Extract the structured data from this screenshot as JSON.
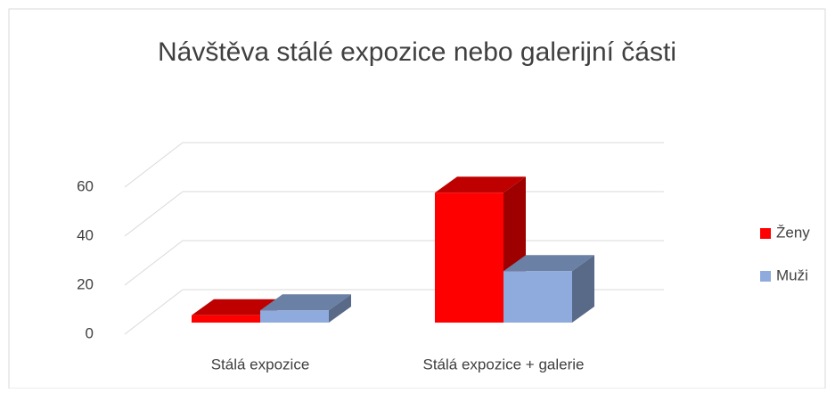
{
  "chart_data": {
    "type": "bar3d",
    "title": "Návštěva stálé expozice nebo galerijní části",
    "categories": [
      "Stálá expozice",
      "Stálá expozice + galerie"
    ],
    "series": [
      {
        "name": "Ženy",
        "color": "#ff0000",
        "values": [
          3,
          53
        ]
      },
      {
        "name": "Muži",
        "color": "#8faadc",
        "values": [
          5,
          21
        ]
      }
    ],
    "ylim": [
      0,
      60
    ],
    "yticks": [
      0,
      20,
      40,
      60
    ],
    "grid": true,
    "legend": "right"
  }
}
